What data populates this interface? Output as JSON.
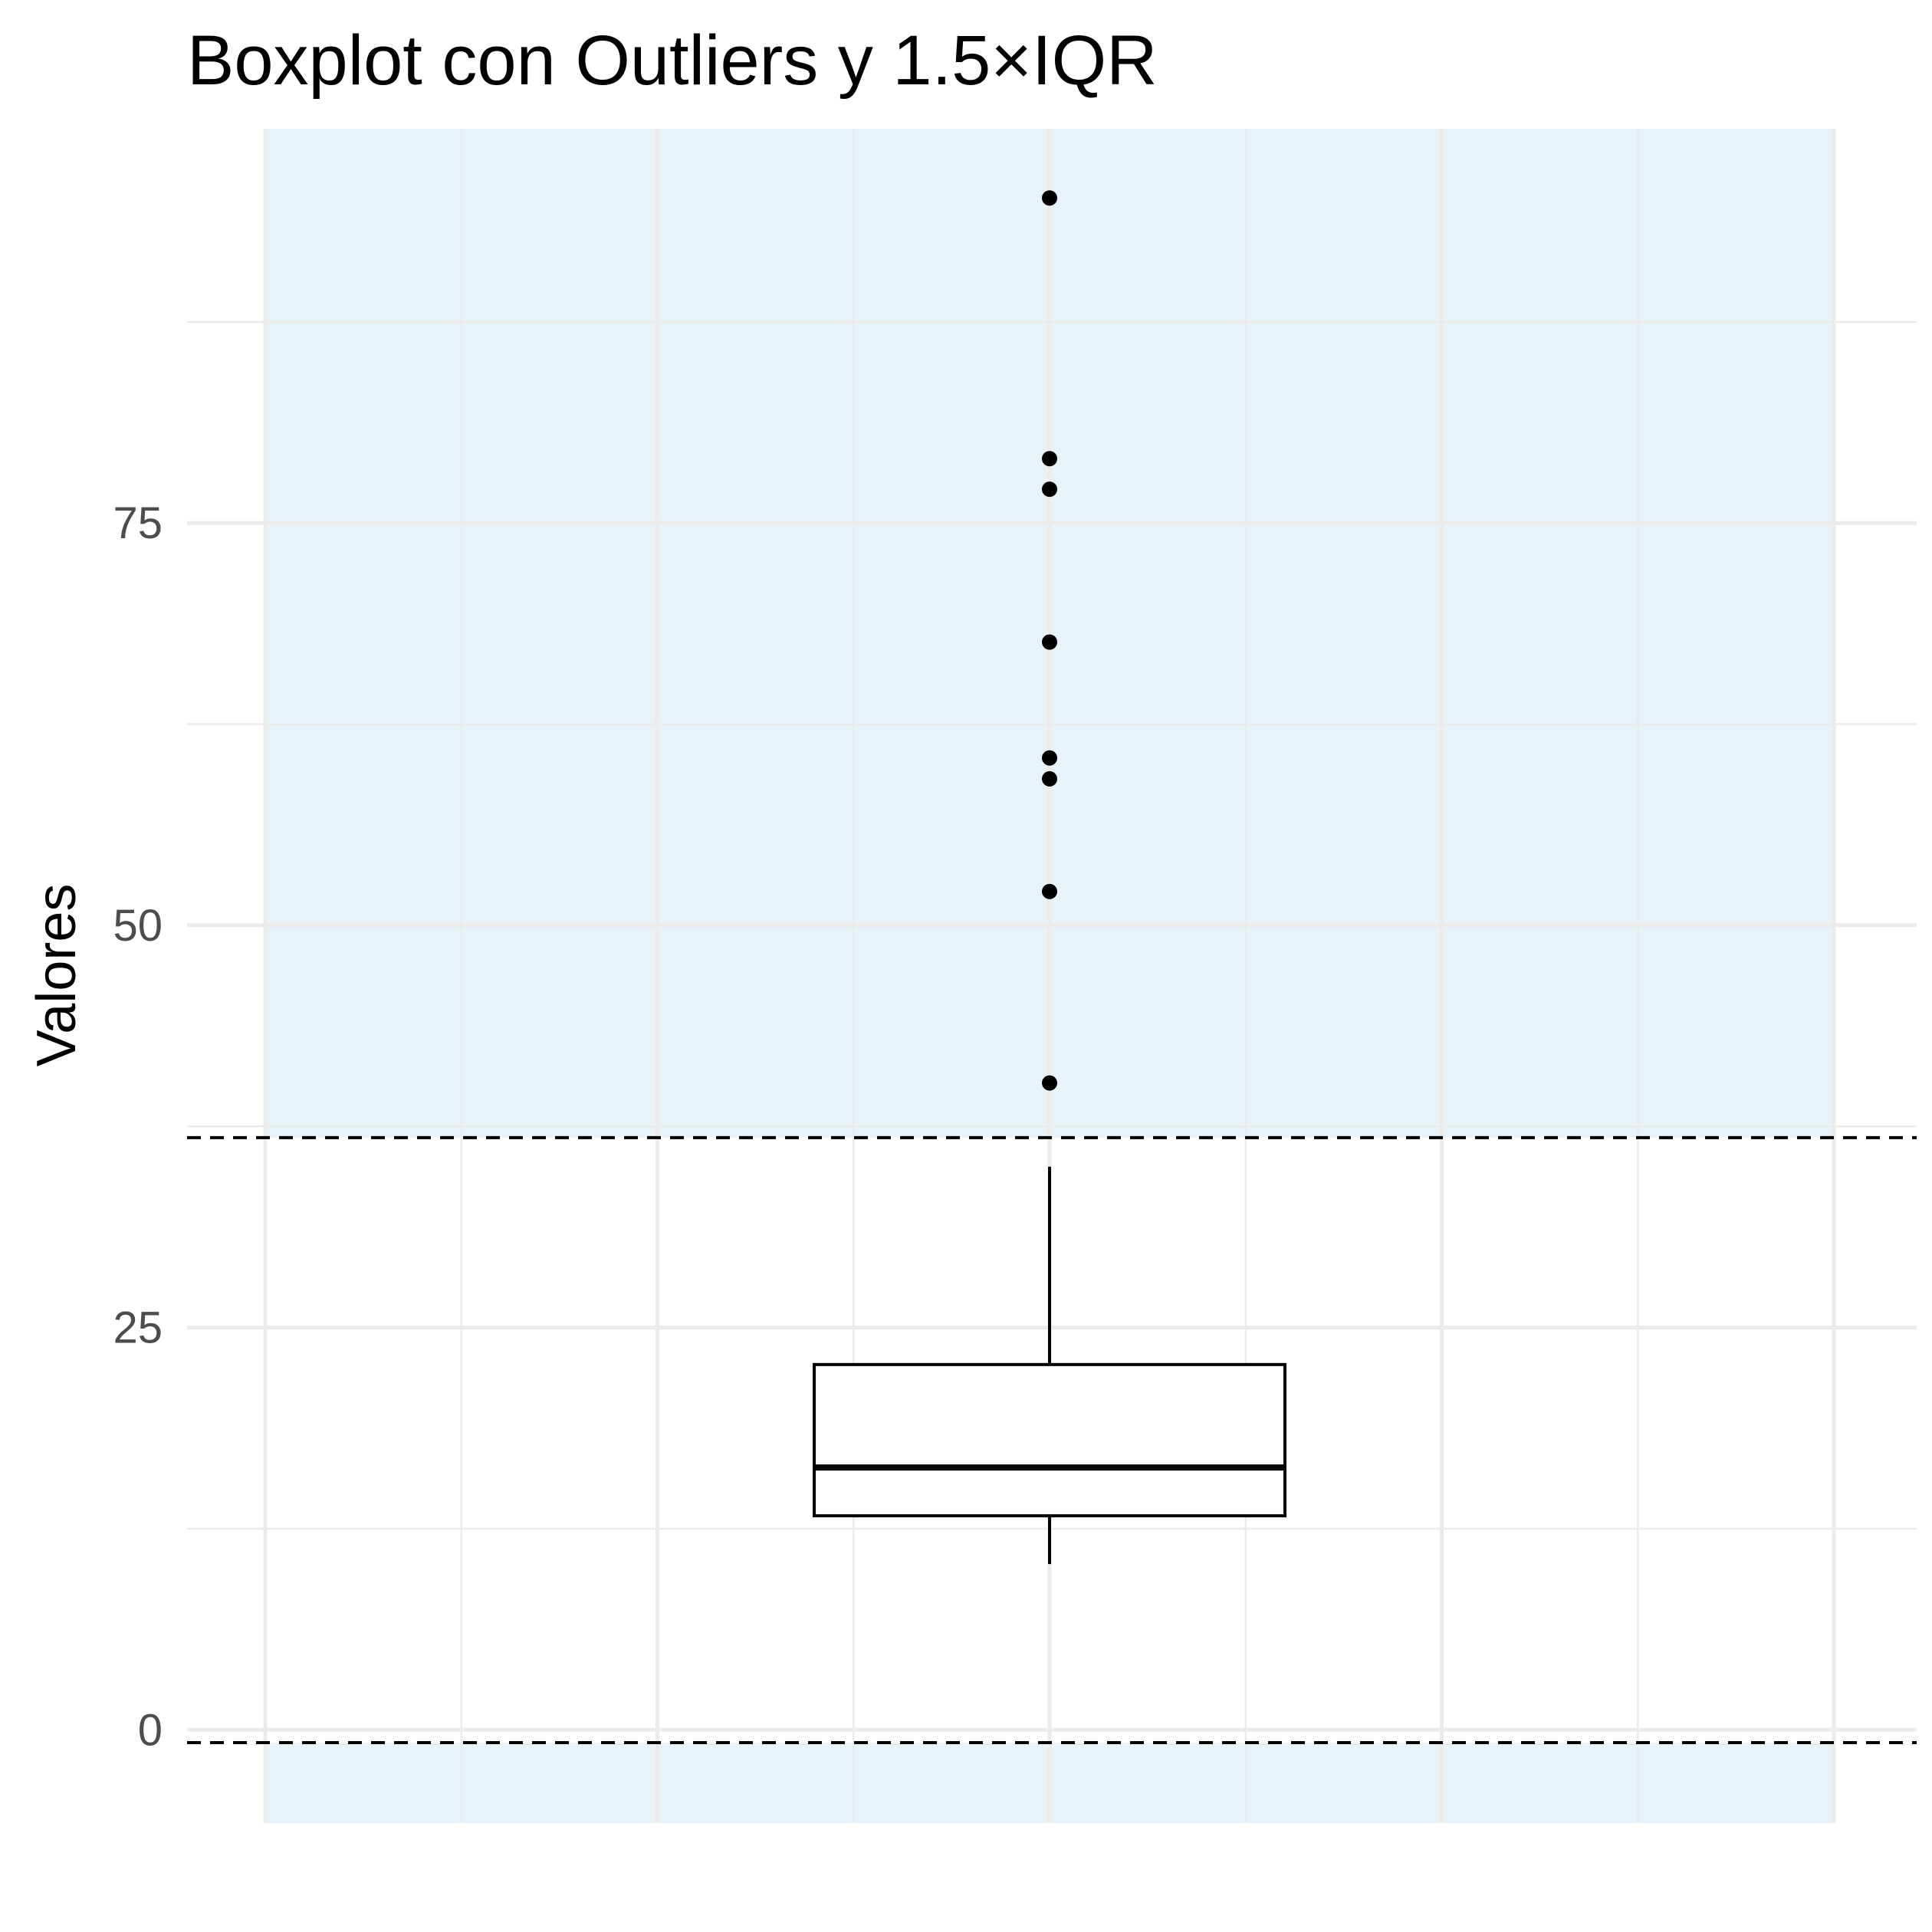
{
  "chart_data": {
    "type": "boxplot",
    "title": "Boxplot con Outliers y 1.5×IQR",
    "xlabel": "",
    "ylabel": "Valores",
    "ylim": [
      -5.8,
      99.5
    ],
    "y_ticks": [
      0,
      25,
      50,
      75
    ],
    "y_tick_labels": [
      "0",
      "25",
      "50",
      "75"
    ],
    "grid": true,
    "box": {
      "q1": 13.3,
      "median": 16.3,
      "q3": 22.7,
      "whisker_low": 10.3,
      "whisker_high": 35.0
    },
    "outliers": [
      95.2,
      79.0,
      77.1,
      67.6,
      60.4,
      59.1,
      52.1,
      40.2
    ],
    "fences": {
      "lower": -0.8,
      "upper": 36.8
    },
    "colors": {
      "outlier_region": "#e8f3f9",
      "grid": "#ebebeb",
      "box_fill": "#ffffff",
      "box_line": "#000000",
      "fence_line": "#000000"
    }
  }
}
